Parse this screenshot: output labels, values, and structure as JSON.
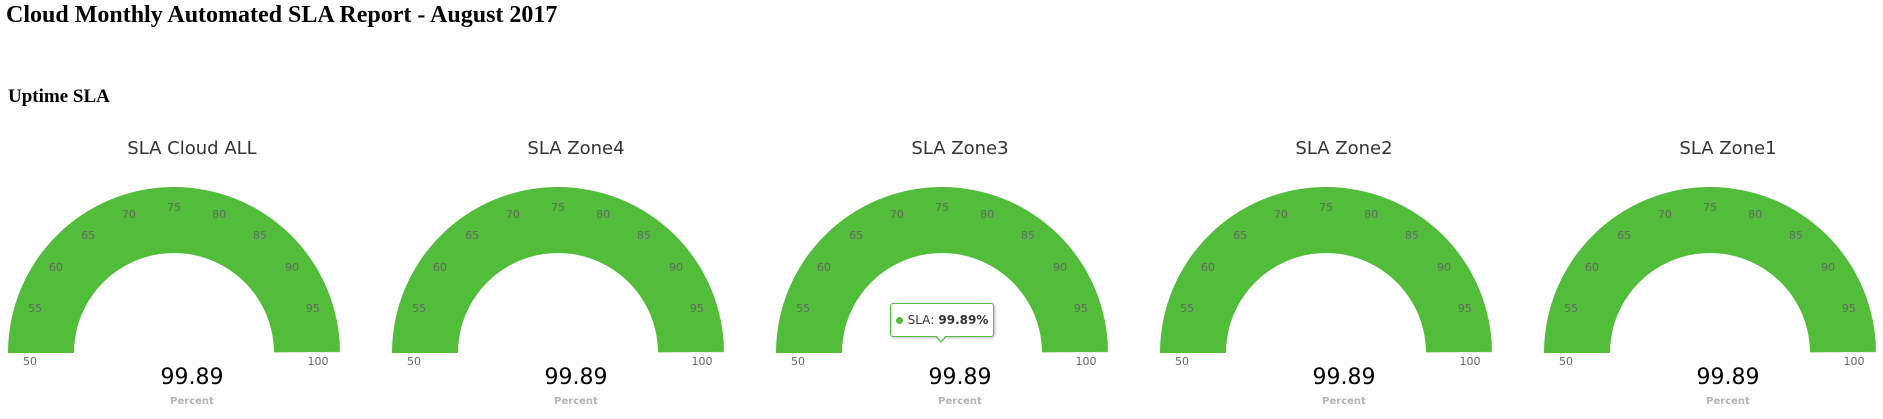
{
  "report": {
    "title": "Cloud Monthly Automated SLA Report - August 2017",
    "section_title": "Uptime SLA"
  },
  "gauges": [
    {
      "title": "SLA Cloud ALL",
      "value": "99.89",
      "unit": "Percent"
    },
    {
      "title": "SLA Zone4",
      "value": "99.89",
      "unit": "Percent"
    },
    {
      "title": "SLA Zone3",
      "value": "99.89",
      "unit": "Percent"
    },
    {
      "title": "SLA Zone2",
      "value": "99.89",
      "unit": "Percent"
    },
    {
      "title": "SLA Zone1",
      "value": "99.89",
      "unit": "Percent"
    }
  ],
  "tooltip": {
    "series": "SLA",
    "value": "99.89%"
  },
  "chart_data": {
    "type": "gauge",
    "min": 50,
    "max": 100,
    "ticks": [
      "50",
      "55",
      "60",
      "65",
      "70",
      "75",
      "80",
      "85",
      "90",
      "95",
      "100"
    ],
    "series": [
      {
        "name": "SLA Cloud ALL",
        "value": 99.89
      },
      {
        "name": "SLA Zone4",
        "value": 99.89
      },
      {
        "name": "SLA Zone3",
        "value": 99.89
      },
      {
        "name": "SLA Zone2",
        "value": 99.89
      },
      {
        "name": "SLA Zone1",
        "value": 99.89
      }
    ],
    "colors": {
      "fill": "#52bd3b",
      "track": "#eeeeee"
    }
  }
}
